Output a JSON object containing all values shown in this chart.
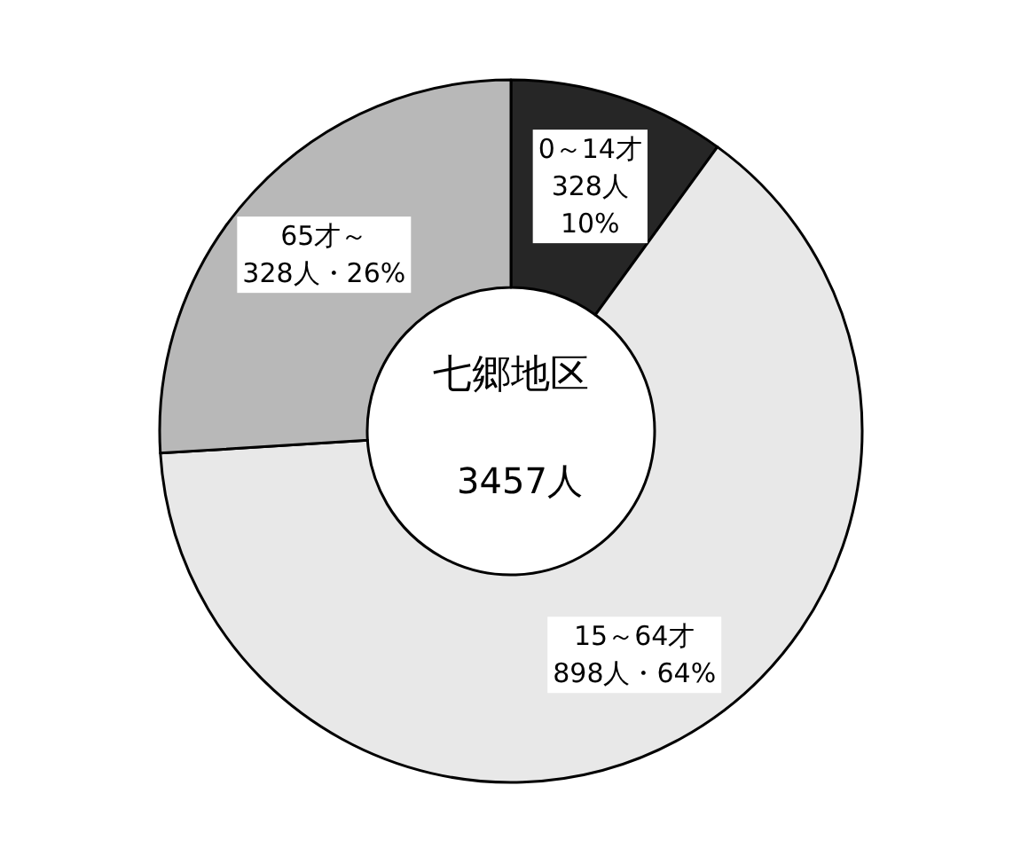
{
  "chart_data": {
    "type": "donut",
    "title": "七郷地区",
    "subtitle": "3457人",
    "categories": [
      "0～14才",
      "15～64才",
      "65才～"
    ],
    "values": [
      10,
      64,
      26
    ],
    "value_labels": [
      "328人 10%",
      "898人・64%",
      "328人・26%"
    ],
    "colors": [
      "#262626",
      "#e8e8e8",
      "#b8b8b8"
    ]
  }
}
